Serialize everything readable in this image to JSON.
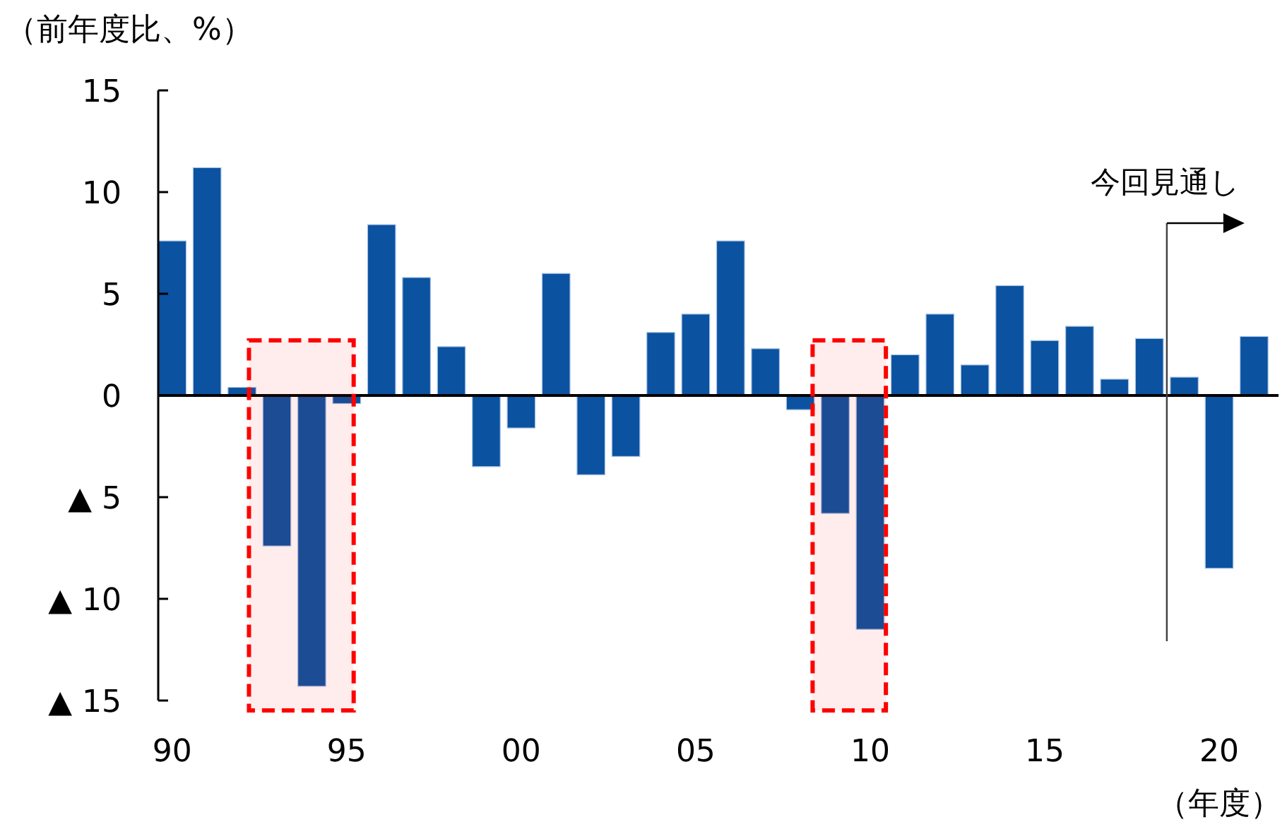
{
  "chart_data": {
    "type": "bar",
    "ylabel": "（前年度比、%）",
    "xlabel": "（年度）",
    "x": [
      1990,
      1991,
      1992,
      1993,
      1994,
      1995,
      1996,
      1997,
      1998,
      1999,
      2000,
      2001,
      2002,
      2003,
      2004,
      2005,
      2006,
      2007,
      2008,
      2009,
      2010,
      2011,
      2012,
      2013,
      2014,
      2015,
      2016,
      2017,
      2018,
      2019,
      2020,
      2021
    ],
    "values": [
      7.6,
      11.2,
      0.4,
      -7.4,
      -14.3,
      -0.4,
      8.4,
      5.8,
      2.4,
      -3.5,
      -1.6,
      6.0,
      -3.9,
      -3.0,
      3.1,
      4.0,
      7.6,
      2.3,
      -0.7,
      -5.8,
      -11.5,
      2.0,
      4.0,
      1.5,
      5.4,
      2.7,
      3.4,
      0.8,
      2.8,
      0.9,
      -8.5,
      2.9
    ],
    "color": "#0b52a0",
    "xlim": [
      1989.6,
      2021.7
    ],
    "xticks": [
      {
        "value": 1990,
        "label": "90"
      },
      {
        "value": 1995,
        "label": "95"
      },
      {
        "value": 2000,
        "label": "00"
      },
      {
        "value": 2005,
        "label": "05"
      },
      {
        "value": 2010,
        "label": "10"
      },
      {
        "value": 2015,
        "label": "15"
      },
      {
        "value": 2020,
        "label": "20"
      }
    ],
    "ylim": [
      -15,
      15
    ],
    "yticks": [
      15,
      10,
      5,
      0,
      {
        "value": -5,
        "label": "▲ 5"
      },
      {
        "value": -10,
        "label": "▲ 10"
      },
      {
        "value": -15,
        "label": "▲ 15"
      }
    ],
    "ref_lines": [
      {
        "axis": "x",
        "value": 2018.5,
        "label": "今回見通し",
        "color": "#404040"
      }
    ],
    "bands": [
      {
        "axis": "x",
        "from": 1992.2,
        "to": 1995.2,
        "color": "#ff0000"
      },
      {
        "axis": "x",
        "from": 2008.35,
        "to": 2010.45,
        "color": "#ff0000"
      }
    ]
  }
}
